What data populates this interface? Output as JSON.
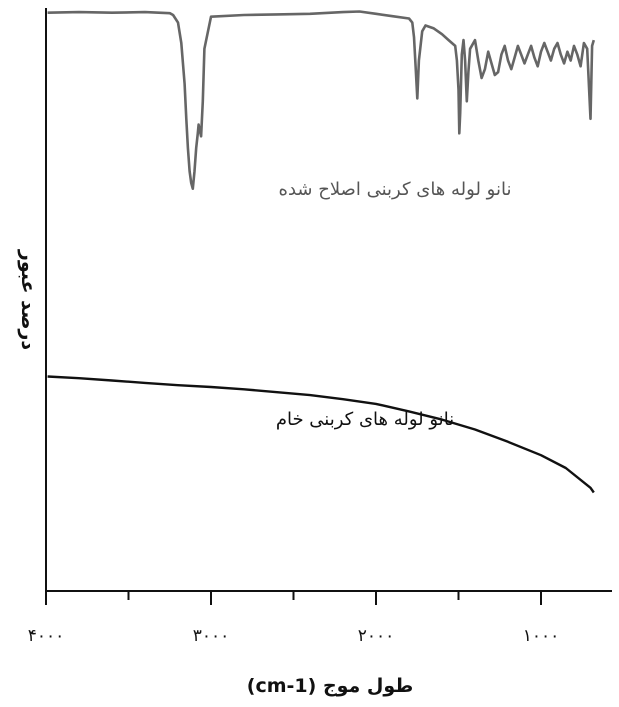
{
  "chart_data": {
    "type": "line",
    "title": "",
    "xlabel": "طول موج (cm-1)",
    "ylabel": "درصد عبور",
    "xlim": [
      4000,
      650
    ],
    "x_reversed": true,
    "y_unit": "arbitrary (%T, offset traces, no y ticks)",
    "ylim": [
      0,
      100
    ],
    "x_ticks": [
      4000,
      3000,
      2000,
      1000
    ],
    "x_tick_labels": [
      "۴۰۰۰",
      "۳۰۰۰",
      "۲۰۰۰",
      "۱۰۰۰"
    ],
    "x_minor_ticks": [
      3500,
      2500,
      1500
    ],
    "grid": false,
    "legend": "none (series labelled inline)",
    "series": [
      {
        "name": "نانو لوله های کربنی اصلاح شده",
        "color": "#666666",
        "x": [
          3990,
          3800,
          3600,
          3400,
          3250,
          3230,
          3200,
          3180,
          3160,
          3150,
          3140,
          3130,
          3120,
          3110,
          3100,
          3090,
          3080,
          3075,
          3060,
          3050,
          3040,
          3000,
          2800,
          2600,
          2400,
          2200,
          2100,
          2000,
          1900,
          1800,
          1780,
          1770,
          1760,
          1750,
          1740,
          1720,
          1700,
          1650,
          1600,
          1560,
          1520,
          1510,
          1500,
          1495,
          1490,
          1480,
          1470,
          1460,
          1450,
          1440,
          1430,
          1400,
          1380,
          1360,
          1340,
          1320,
          1300,
          1280,
          1260,
          1240,
          1220,
          1200,
          1180,
          1160,
          1140,
          1120,
          1100,
          1080,
          1060,
          1040,
          1020,
          1000,
          980,
          960,
          940,
          920,
          900,
          880,
          860,
          840,
          820,
          800,
          780,
          760,
          740,
          720,
          700,
          690,
          680
        ],
        "y": [
          99.2,
          99.3,
          99.2,
          99.3,
          99.1,
          98.8,
          97.5,
          94,
          87,
          81,
          76,
          72,
          70,
          69,
          72,
          76,
          78.5,
          80,
          78,
          84,
          93,
          98.5,
          98.8,
          98.9,
          99.0,
          99.3,
          99.4,
          99.0,
          98.6,
          98.2,
          97.5,
          95,
          90,
          84.5,
          91,
          96,
          97,
          96.5,
          95.5,
          94.5,
          93.5,
          91,
          86,
          78.5,
          82,
          92,
          94.5,
          91,
          84,
          89,
          93,
          94.5,
          91,
          88,
          89.5,
          92.5,
          90.5,
          88.5,
          89,
          92,
          93.5,
          91,
          89.5,
          91.5,
          93.5,
          92,
          90.5,
          92,
          93.5,
          91.5,
          90,
          92.5,
          94,
          92.5,
          91,
          93,
          94,
          92,
          90.5,
          92.5,
          91,
          93.5,
          92,
          90,
          94,
          93,
          81,
          93.5,
          94.5
        ]
      },
      {
        "name": "نانو لوله های کربنی خام",
        "color": "#111111",
        "x": [
          3990,
          3800,
          3600,
          3400,
          3200,
          3000,
          2800,
          2600,
          2400,
          2200,
          2000,
          1800,
          1600,
          1400,
          1200,
          1000,
          850,
          700,
          680
        ],
        "y": [
          36.8,
          36.5,
          36.1,
          35.7,
          35.3,
          35.0,
          34.6,
          34.1,
          33.6,
          32.9,
          32.1,
          30.8,
          29.4,
          27.7,
          25.6,
          23.3,
          21.1,
          17.7,
          16.9
        ]
      }
    ]
  }
}
